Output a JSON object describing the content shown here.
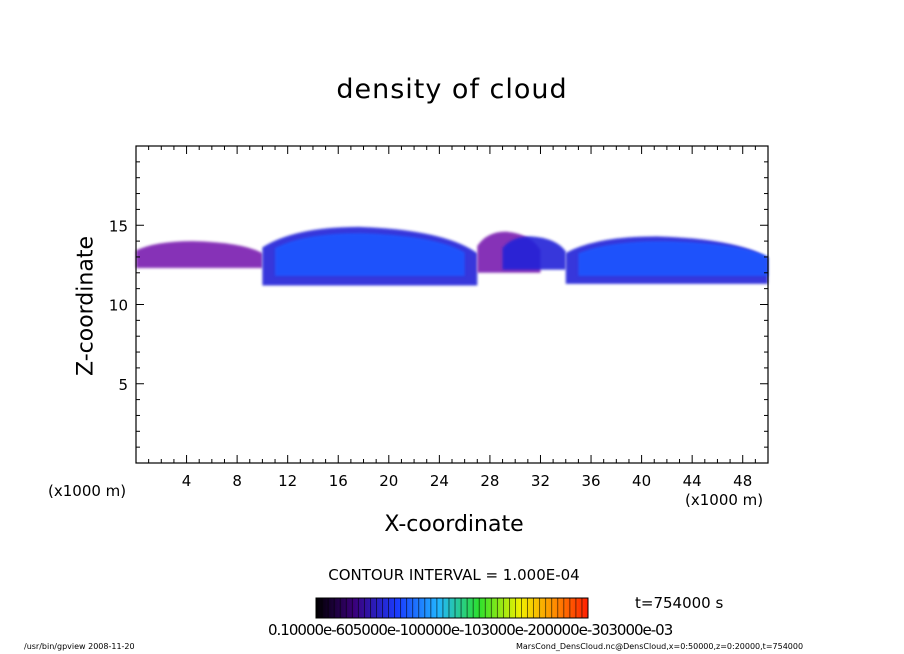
{
  "chart_data": {
    "type": "heatmap",
    "title": "density of cloud",
    "xlabel": "X-coordinate",
    "ylabel": "Z-coordinate",
    "x_unit": "(x1000 m)",
    "xlim": [
      0,
      50
    ],
    "ylim": [
      0,
      20
    ],
    "x_ticks": [
      "4",
      "8",
      "12",
      "16",
      "20",
      "24",
      "28",
      "32",
      "36",
      "40",
      "44",
      "48"
    ],
    "y_ticks": [
      "5",
      "10",
      "15"
    ],
    "contour_interval": "CONTOUR INTERVAL = 1.000E-04",
    "time_label": "t=754000 s",
    "colorbar_labels": "0.10000e-605000e-100000e-103000e-200000e-303000e-03",
    "regions": [
      {
        "x": [
          0,
          10
        ],
        "z": [
          12.3,
          14.0
        ],
        "level": 0.1
      },
      {
        "x": [
          10,
          27
        ],
        "z": [
          11.2,
          14.9
        ],
        "level": 0.2
      },
      {
        "x": [
          11,
          26
        ],
        "z": [
          11.8,
          14.5
        ],
        "level": 0.6
      },
      {
        "x": [
          27,
          32
        ],
        "z": [
          12.0,
          14.6
        ],
        "level": 0.1
      },
      {
        "x": [
          29,
          34
        ],
        "z": [
          12.2,
          14.3
        ],
        "level": 0.3
      },
      {
        "x": [
          34,
          50
        ],
        "z": [
          11.3,
          14.3
        ],
        "level": 0.2
      },
      {
        "x": [
          35,
          50
        ],
        "z": [
          11.8,
          14.0
        ],
        "level": 0.5
      }
    ]
  },
  "footer": {
    "left": "/usr/bin/gpview   2008-11-20",
    "right": "MarsCond_DensCloud.nc@DensCloud,x=0:50000,z=0:20000,t=754000"
  },
  "colors": {
    "low": "#7a1fb0",
    "mid": "#2424d8",
    "high": "#1e56ff",
    "colorbar": [
      "#000000",
      "#3a007a",
      "#1a3cff",
      "#22b5ff",
      "#2de02d",
      "#f0f000",
      "#ff8a00",
      "#ff1e00"
    ]
  }
}
